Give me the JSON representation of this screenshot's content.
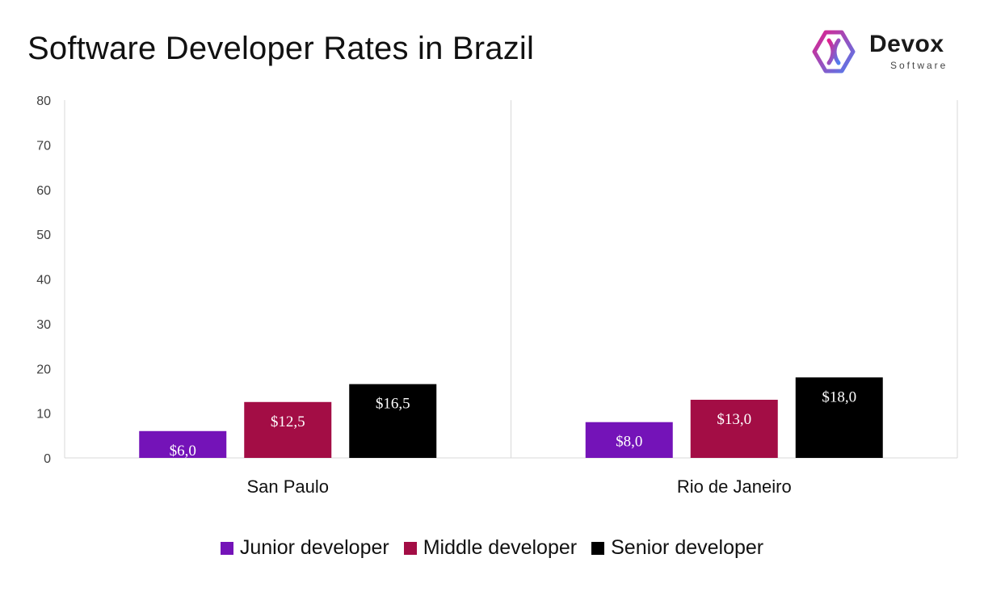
{
  "header": {
    "title": "Software Developer Rates in Brazil",
    "logo_name": "Devox",
    "logo_sub": "Software"
  },
  "colors": {
    "Junior developer": "#7413b8",
    "Middle developer": "#a30d45",
    "Senior developer": "#000000",
    "grid": "#d9d9d9",
    "logo_gradient_start": "#e0208c",
    "logo_gradient_end": "#4f7ff0"
  },
  "chart_data": {
    "type": "bar",
    "title": "Software Developer Rates in Brazil",
    "xlabel": "",
    "ylabel": "",
    "ylim": [
      0,
      80
    ],
    "yticks": [
      0,
      10,
      20,
      30,
      40,
      50,
      60,
      70,
      80
    ],
    "categories": [
      "San Paulo",
      "Rio de Janeiro"
    ],
    "series": [
      {
        "name": "Junior developer",
        "values": [
          6.0,
          8.0
        ],
        "labels": [
          "$6,0",
          "$8,0"
        ]
      },
      {
        "name": "Middle developer",
        "values": [
          12.5,
          13.0
        ],
        "labels": [
          "$12,5",
          "$13,0"
        ]
      },
      {
        "name": "Senior developer",
        "values": [
          16.5,
          18.0
        ],
        "labels": [
          "$16,5",
          "$18,0"
        ]
      }
    ],
    "legend_position": "bottom",
    "grid": false
  }
}
